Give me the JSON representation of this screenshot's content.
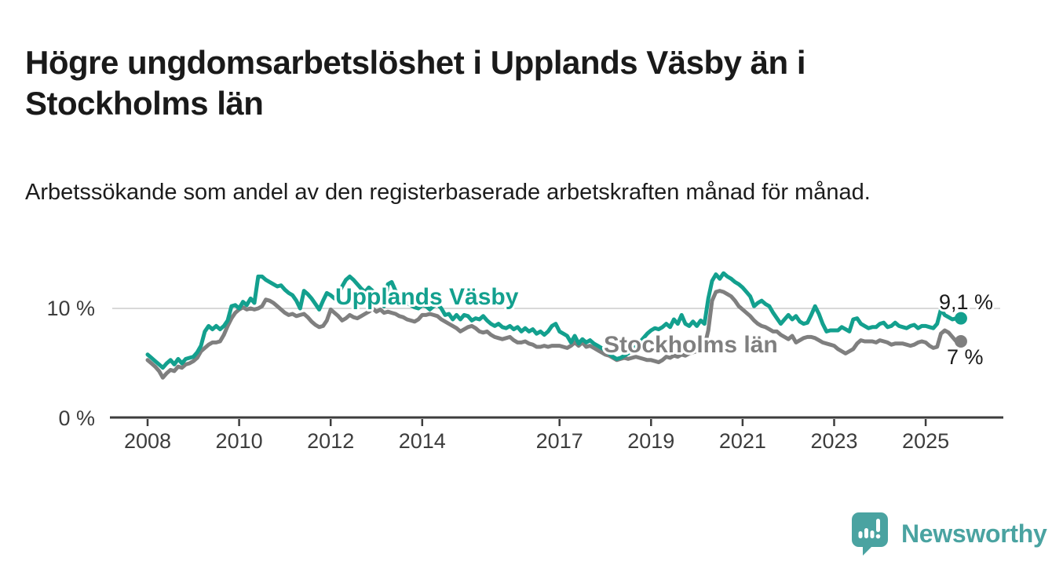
{
  "title": "Högre ungdomsarbetslöshet i Upplands Väsby än i Stockholms län",
  "subtitle": "Arbetssökande som andel av den registerbaserade arbetskraften månad för månad.",
  "branding": {
    "logo_text": "Newsworthy",
    "logo_color": "#4aa3a1"
  },
  "colors": {
    "background": "#ffffff",
    "title_text": "#1a1a1a",
    "axis": "#3d3d3d",
    "axis_label": "#3d3d3d",
    "gridline": "#d8d8d8",
    "end_label_text": "#1a1a1a",
    "series_teal": "#13a08e",
    "series_gray": "#7f7f7f"
  },
  "chart_data": {
    "type": "line",
    "title": "Högre ungdomsarbetslöshet i Upplands Väsby än i Stockholms län",
    "subtitle": "Arbetssökande som andel av den registerbaserade arbetskraften månad för månad.",
    "unit": "%",
    "x_start_year": 2008,
    "x_end": "2025-09",
    "points_per_year": 12,
    "x_tick_years": [
      2008,
      2010,
      2012,
      2014,
      2017,
      2019,
      2021,
      2023,
      2025
    ],
    "x_tick_labels": [
      "2008",
      "2010",
      "2012",
      "2014",
      "2017",
      "2019",
      "2021",
      "2023",
      "2025"
    ],
    "y_ticks": [
      {
        "value": 0,
        "label": "0 %"
      },
      {
        "value": 10,
        "label": "10 %"
      }
    ],
    "ylim": [
      0,
      14.4
    ],
    "grid": "single horizontal gridline at 10 %",
    "legend_position": "inline labels drawn on the chart",
    "series": [
      {
        "name": "Upplands Väsby",
        "color": "#13a08e",
        "end_label": "9,1 %",
        "end_value": 9.1,
        "values": [
          5.8,
          5.5,
          5.2,
          4.9,
          4.6,
          5.0,
          5.3,
          4.9,
          5.4,
          5.0,
          5.4,
          5.5,
          5.6,
          6.0,
          6.6,
          7.9,
          8.4,
          8.1,
          8.4,
          8.1,
          8.4,
          8.9,
          10.2,
          10.3,
          10.0,
          10.6,
          10.3,
          10.9,
          10.5,
          12.9,
          12.9,
          12.6,
          12.4,
          12.2,
          12.0,
          12.1,
          11.7,
          11.4,
          11.2,
          10.7,
          10.0,
          11.6,
          11.3,
          10.9,
          10.4,
          9.9,
          10.7,
          11.4,
          11.2,
          10.9,
          11.3,
          12.0,
          12.6,
          12.9,
          12.6,
          12.2,
          11.8,
          11.5,
          11.9,
          11.6,
          11.3,
          10.9,
          10.2,
          12.2,
          12.4,
          11.6,
          11.1,
          10.8,
          10.5,
          10.3,
          10.1,
          10.0,
          10.3,
          10.2,
          9.9,
          10.2,
          10.4,
          10.0,
          9.4,
          9.5,
          9.0,
          9.4,
          9.0,
          9.4,
          9.3,
          8.9,
          9.1,
          9.0,
          9.3,
          8.9,
          8.6,
          8.4,
          8.6,
          8.3,
          8.2,
          8.4,
          8.1,
          8.3,
          7.9,
          8.2,
          7.9,
          8.1,
          7.7,
          7.9,
          7.6,
          7.9,
          8.4,
          8.6,
          7.9,
          7.7,
          7.5,
          6.9,
          7.5,
          6.8,
          7.2,
          6.9,
          7.1,
          6.8,
          6.6,
          6.4,
          6.2,
          5.9,
          5.6,
          5.4,
          5.5,
          5.7,
          5.9,
          6.2,
          6.5,
          6.9,
          7.3,
          7.7,
          8.0,
          8.2,
          8.1,
          8.3,
          8.6,
          8.3,
          9.0,
          8.6,
          9.4,
          8.6,
          8.4,
          8.8,
          8.4,
          8.9,
          8.6,
          10.9,
          12.5,
          13.1,
          12.7,
          13.2,
          12.9,
          12.7,
          12.4,
          12.2,
          11.9,
          11.5,
          11.1,
          10.2,
          10.5,
          10.7,
          10.4,
          10.2,
          9.6,
          9.1,
          8.6,
          9.0,
          9.4,
          9.0,
          9.3,
          8.8,
          8.6,
          8.7,
          9.4,
          10.2,
          9.5,
          8.6,
          7.9,
          8.0,
          8.0,
          8.0,
          8.3,
          8.1,
          7.9,
          9.0,
          9.1,
          8.6,
          8.4,
          8.2,
          8.3,
          8.3,
          8.6,
          8.7,
          8.3,
          8.4,
          8.7,
          8.4,
          8.3,
          8.2,
          8.4,
          8.5,
          8.2,
          8.4,
          8.4,
          8.3,
          8.2,
          8.6,
          9.9,
          9.4,
          9.2,
          9.0,
          9.1
        ]
      },
      {
        "name": "Stockholms län",
        "color": "#7f7f7f",
        "end_label": "7 %",
        "end_value": 7.0,
        "values": [
          5.3,
          5.0,
          4.7,
          4.3,
          3.7,
          4.1,
          4.4,
          4.3,
          4.7,
          4.6,
          4.9,
          5.0,
          5.2,
          5.5,
          6.1,
          6.4,
          6.7,
          6.9,
          6.9,
          7.0,
          7.6,
          8.4,
          9.1,
          9.6,
          9.9,
          10.1,
          9.9,
          10.0,
          9.9,
          10.0,
          10.2,
          10.8,
          10.7,
          10.5,
          10.2,
          9.9,
          9.6,
          9.4,
          9.5,
          9.3,
          9.4,
          9.5,
          9.2,
          8.8,
          8.5,
          8.3,
          8.4,
          8.9,
          9.9,
          9.6,
          9.3,
          8.9,
          9.1,
          9.4,
          9.2,
          9.1,
          9.3,
          9.5,
          9.7,
          10.0,
          9.7,
          9.9,
          9.6,
          9.7,
          9.6,
          9.5,
          9.3,
          9.2,
          9.0,
          8.9,
          8.8,
          9.0,
          9.4,
          9.4,
          9.5,
          9.4,
          9.3,
          9.0,
          8.8,
          8.6,
          8.4,
          8.2,
          7.9,
          8.1,
          8.3,
          8.4,
          8.2,
          7.9,
          7.8,
          7.9,
          7.6,
          7.4,
          7.3,
          7.2,
          7.3,
          7.4,
          7.1,
          6.9,
          6.9,
          7.0,
          6.8,
          6.7,
          6.5,
          6.5,
          6.6,
          6.5,
          6.6,
          6.6,
          6.6,
          6.5,
          6.4,
          6.6,
          6.9,
          6.6,
          6.9,
          6.5,
          6.6,
          6.4,
          6.2,
          6.0,
          5.8,
          5.7,
          5.5,
          5.3,
          5.4,
          5.5,
          5.4,
          5.5,
          5.6,
          5.5,
          5.4,
          5.3,
          5.3,
          5.2,
          5.1,
          5.3,
          5.6,
          5.5,
          5.7,
          5.6,
          5.8,
          5.7,
          5.9,
          6.0,
          6.1,
          6.2,
          6.5,
          8.0,
          10.7,
          11.5,
          11.6,
          11.5,
          11.3,
          11.1,
          10.7,
          10.2,
          9.9,
          9.6,
          9.3,
          8.9,
          8.6,
          8.4,
          8.3,
          8.1,
          7.9,
          7.9,
          7.6,
          7.4,
          7.2,
          7.5,
          6.9,
          7.1,
          7.3,
          7.4,
          7.4,
          7.3,
          7.1,
          6.9,
          6.8,
          6.7,
          6.6,
          6.3,
          6.1,
          5.9,
          6.1,
          6.3,
          6.8,
          7.1,
          7.0,
          7.0,
          7.0,
          6.9,
          7.1,
          7.0,
          6.9,
          6.7,
          6.8,
          6.8,
          6.8,
          6.7,
          6.6,
          6.7,
          6.9,
          7.0,
          6.9,
          6.6,
          6.4,
          6.5,
          7.7,
          8.0,
          7.8,
          7.4,
          7.0
        ]
      }
    ]
  }
}
